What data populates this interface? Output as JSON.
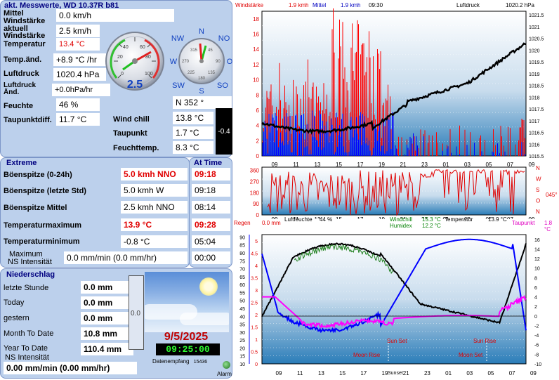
{
  "current": {
    "title": "akt. Messwerte, WD 10.37R b81",
    "rows": [
      {
        "label": "Mittel",
        "value": "0.0 km/h"
      },
      {
        "label": "Windstärke aktuell",
        "value": "2.5 km/h"
      },
      {
        "label": "Windstärke",
        "value": "13.4 °C"
      },
      {
        "label": "Temperatur",
        "value": ""
      },
      {
        "label": "Temp.änd.",
        "value": "+8.9 °C /hr"
      },
      {
        "label": "Luftdruck",
        "value": "1020.4 hPa"
      },
      {
        "label": "Luftdruck Änd.",
        "value": "+0.0hPa/hr"
      },
      {
        "label": "Feuchte",
        "value": "46 %"
      },
      {
        "label": "Taupunktdiff.",
        "value": "11.7 °C"
      }
    ],
    "mittel_label": "Mittel",
    "windstaerke_aktuell_label": "Windstärke aktuell",
    "windstaerke_label": "Windstärke",
    "temperatur_label": "Temperatur",
    "mittel_value": "0.0 km/h",
    "wind_aktuell_value": "2.5 km/h",
    "temperatur_value": "13.4 °C",
    "temp_aend_label": "Temp.änd.",
    "temp_aend_value": "+8.9 °C /hr",
    "luftdruck_label": "Luftdruck",
    "luftdruck_value": "1020.4 hPa",
    "luftdruck_aend_label": "Luftdruck Änd.",
    "luftdruck_aend_value": "+0.0hPa/hr",
    "feuchte_label": "Feuchte",
    "feuchte_value": "46 %",
    "taupunktdiff_label": "Taupunktdiff.",
    "taupunktdiff_value": "11.7 °C",
    "direction_value": "N  352 °",
    "windchill_label": "Wind chill",
    "windchill_value": "13.8 °C",
    "taupunkt_label": "Taupunkt",
    "taupunkt_value": "1.7 °C",
    "feuchttemp_label": "Feuchttemp.",
    "feuchttemp_value": "8.3 °C",
    "dark_box_value": "-0.4",
    "gauge_value": "2.5",
    "gauge_ticks": [
      "0",
      "20",
      "40",
      "60",
      "80",
      "100"
    ],
    "compass": {
      "n": "N",
      "no": "NO",
      "o": "O",
      "so": "SO",
      "s": "S",
      "sw": "SW",
      "w": "W",
      "nw": "NW",
      "ticks": [
        "315",
        "45",
        "270",
        "90",
        "225",
        "135",
        "180"
      ]
    }
  },
  "extreme": {
    "title": "Extreme",
    "at_time_title": "At Time",
    "rows": [
      {
        "label": "Böenspitze (0-24h)",
        "value": "5.0 kmh NNO",
        "time": "09:18"
      },
      {
        "label": "Böenspitze (letzte Std)",
        "value": "5.0 kmh  W",
        "time": "09:18"
      },
      {
        "label": "Böenspitze Mittel",
        "value": "2.5 kmh NNO",
        "time": "08:14"
      },
      {
        "label": "Temperaturmaximum",
        "value": "13.9 °C",
        "time": "09:28"
      },
      {
        "label": "Temperaturminimum",
        "value": "-0.8 °C",
        "time": "05:04"
      },
      {
        "label": "Maximum NS Intensität",
        "value": "0.0 mm/min (0.0 mm/hr)",
        "time": "00:00"
      }
    ],
    "max_ns_label_1": "Maximum",
    "max_ns_label_2": "NS Intensität"
  },
  "niederschlag": {
    "title": "Niederschlag",
    "rows": [
      {
        "label": "letzte Stunde",
        "value": "0.0 mm"
      },
      {
        "label": "Today",
        "value": "0.0 mm"
      },
      {
        "label": "gestern",
        "value": "0.0 mm"
      },
      {
        "label": "Month To Date",
        "value": "10.8 mm"
      },
      {
        "label": "Year To Date",
        "value": "110.4 mm"
      }
    ],
    "ns_label": "NS Intensität",
    "ns_value": "0.00 mm/min (0.00 mm/hr)",
    "bar_value": "0.0",
    "date": "9/5/2025",
    "time": "09:25:00",
    "datenempfang_label": "Datenempfang",
    "datenempfang_value": "15436",
    "alarm_label": "Alarm"
  },
  "charts": {
    "wind_top": {
      "windstaerke_label": "Windstärke",
      "wind_value": "1.9 kmh",
      "mittel_label": "Mittel",
      "mittel_value": "1.9 kmh",
      "time": "09:30",
      "luftdruck_label": "Luftdruck",
      "luftdruck_value": "1020.2 hPa",
      "left_ticks": [
        "0",
        "2",
        "4",
        "6",
        "8",
        "10",
        "12",
        "14",
        "16",
        "18"
      ],
      "right_ticks": [
        "1015.5",
        "1016",
        "1016.5",
        "1017",
        "1017.5",
        "1018",
        "1018.5",
        "1019",
        "1019.5",
        "1020",
        "1020.5",
        "1021",
        "1021.5"
      ],
      "x_ticks": [
        "09",
        "11",
        "13",
        "15",
        "17",
        "19",
        "21",
        "23",
        "01",
        "03",
        "05",
        "07",
        "09"
      ]
    },
    "direction": {
      "left_ticks": [
        "0",
        "90",
        "180",
        "270",
        "360"
      ],
      "right_labels": [
        "N",
        "W",
        "S",
        "O",
        "N"
      ],
      "value": "045°",
      "x_ticks": [
        "09",
        "11",
        "13",
        "15",
        "17",
        "19",
        "21",
        "23",
        "01",
        "03",
        "05",
        "07",
        "09"
      ]
    },
    "bottom": {
      "regen_label": "Regen",
      "regen_value": "0.0 mm",
      "luftfeuchte_label": "Luftfeuchte",
      "luftfeuchte_value": "44 %",
      "windchill_label": "Windchill",
      "windchill_value": "15.3 °C",
      "humidex_label": "Humidex",
      "humidex_value": "12.2 °C",
      "temperatur_label": "Temperatur",
      "temperatur_value": "13.9 °C",
      "taupunkt_label": "Taupunkt",
      "taupunkt_value": "1.8 °C",
      "left_ticks_pct": [
        "10",
        "15",
        "20",
        "25",
        "30",
        "35",
        "40",
        "45",
        "50",
        "55",
        "60",
        "65",
        "70",
        "75",
        "80",
        "85",
        "90"
      ],
      "left_ticks_mm": [
        "0",
        "0.5",
        "1",
        "1.5",
        "2",
        "2.5",
        "3",
        "3.5",
        "4",
        "4.5",
        "5"
      ],
      "right_ticks": [
        "-10",
        "-8",
        "-6",
        "-4",
        "-2",
        "0",
        "2",
        "4",
        "6",
        "8",
        "10",
        "12",
        "14",
        "16"
      ],
      "x_ticks": [
        "09",
        "11",
        "13",
        "15",
        "17",
        "19",
        "21",
        "23",
        "01",
        "03",
        "05",
        "07",
        "09"
      ],
      "sun_set": "Sun Set",
      "sun_rise": "Sun Rise",
      "moon_set": "Moon Set",
      "moon_rise": "Moon Rise",
      "sunset_marker": "Sunset"
    }
  },
  "colors": {
    "panel": "#bcd0ec",
    "title": "#000080",
    "red": "#e00000",
    "blue": "#0000ff"
  }
}
